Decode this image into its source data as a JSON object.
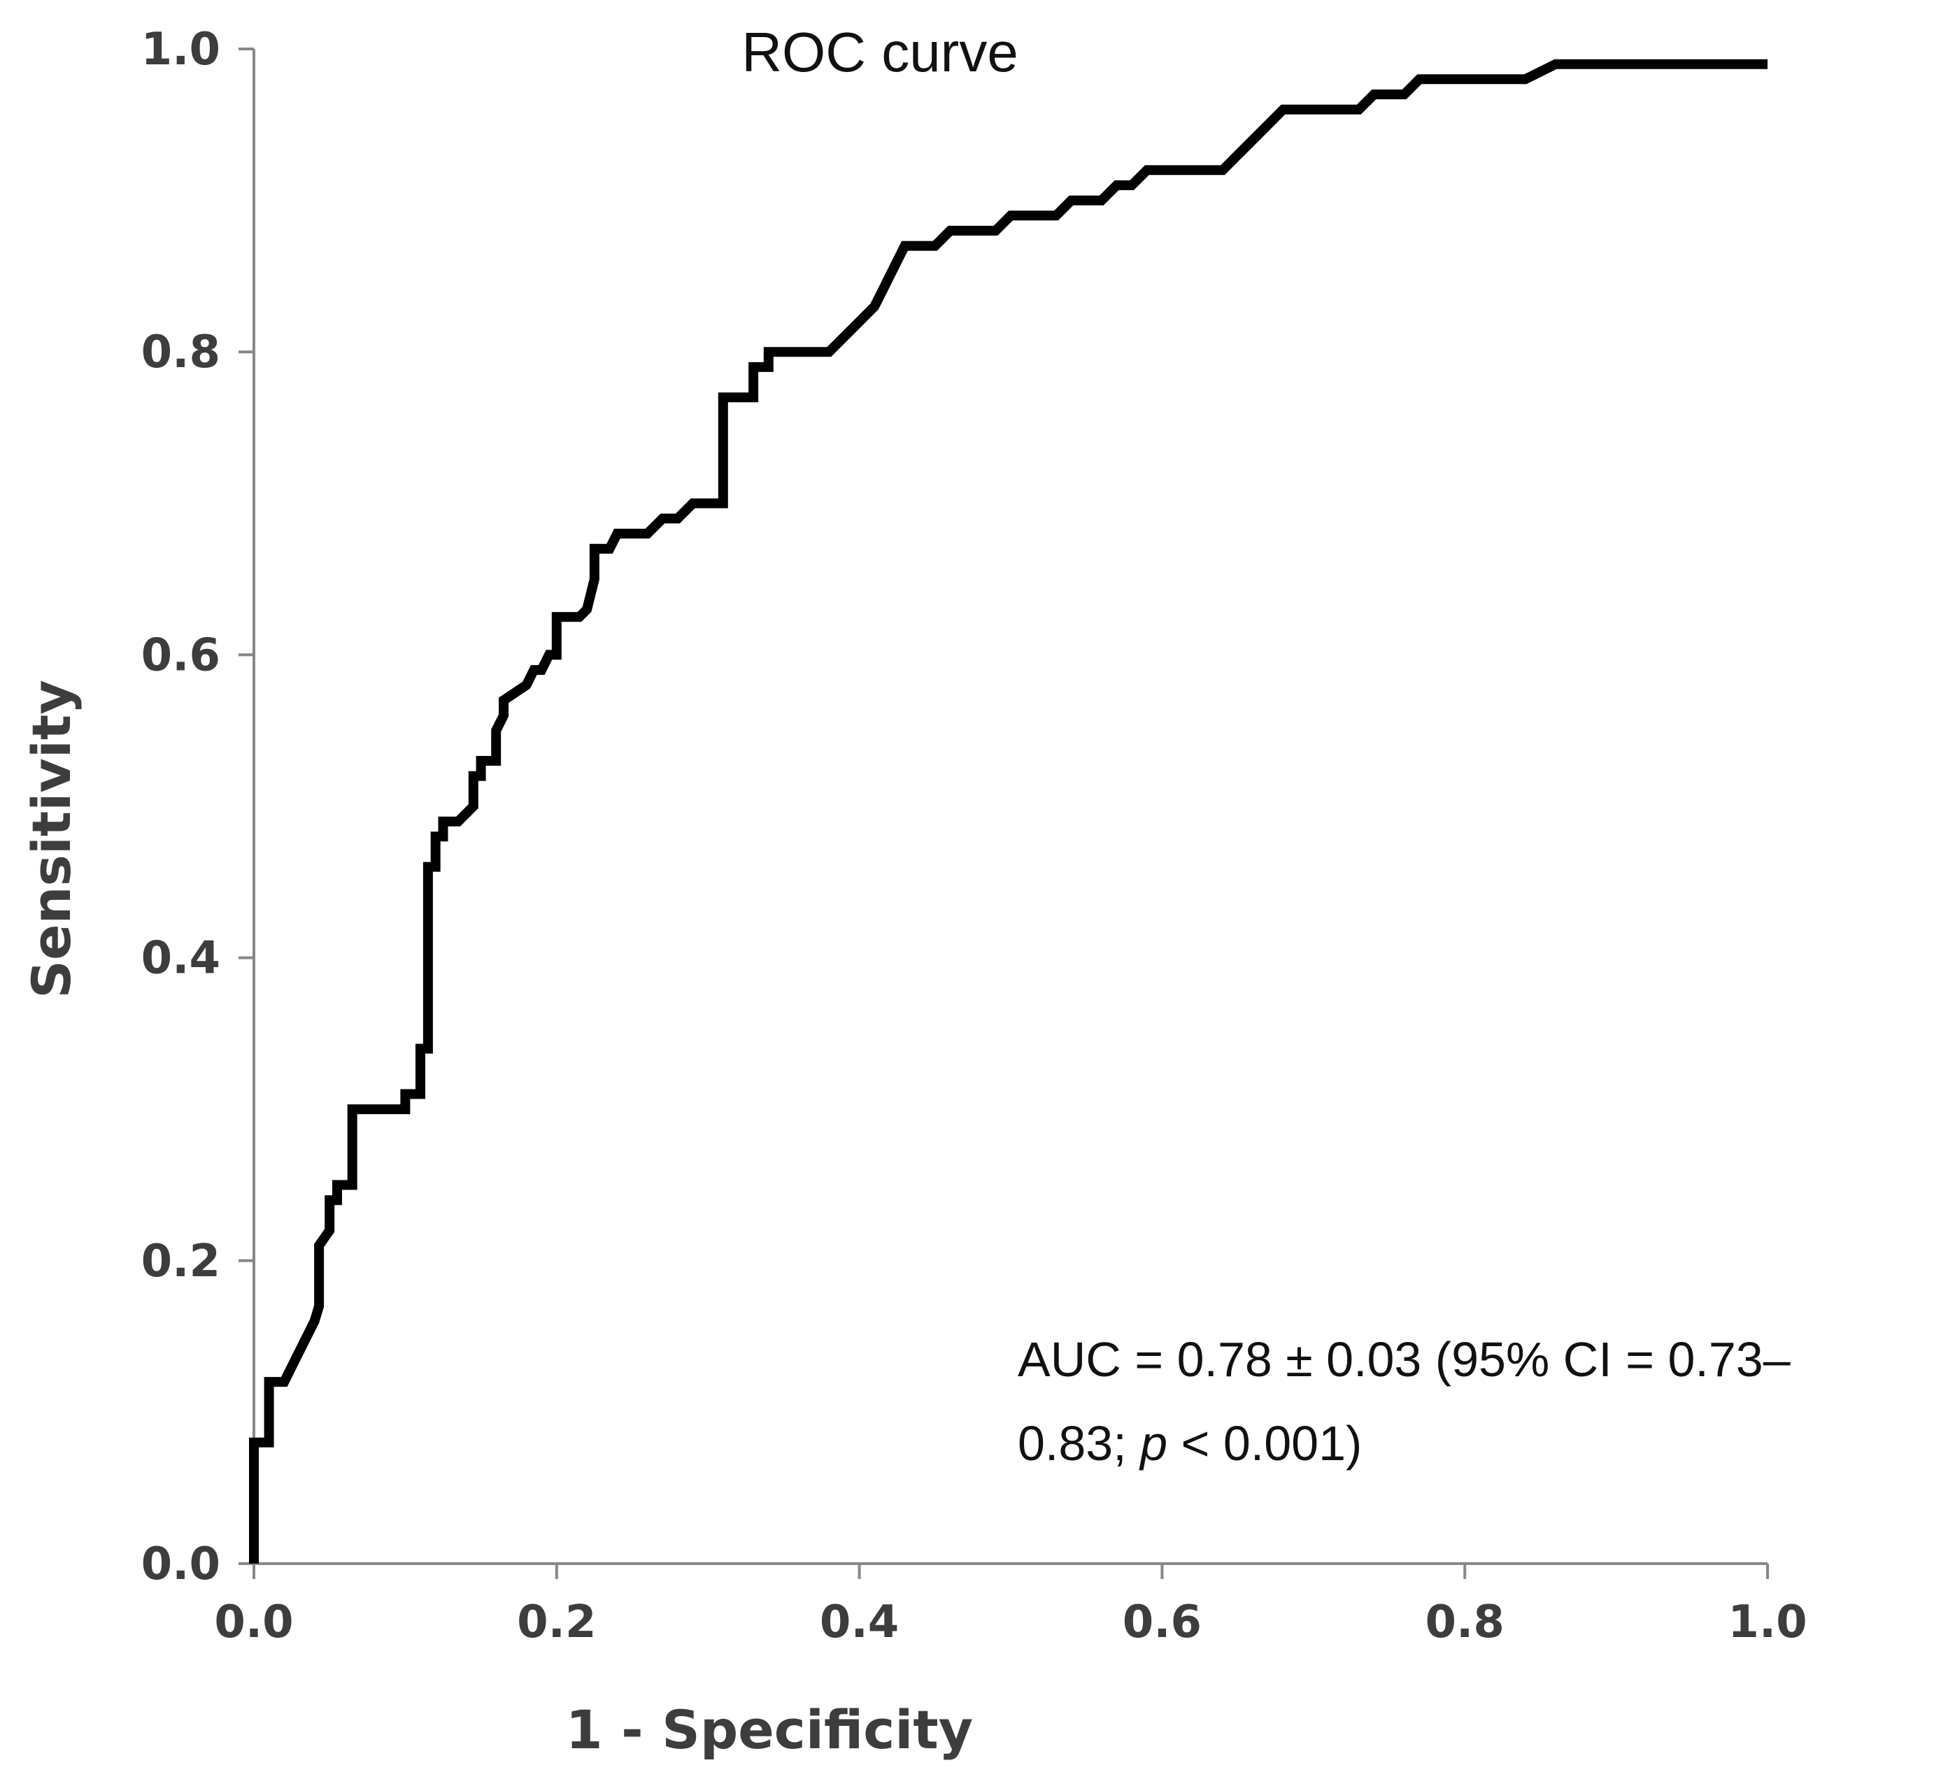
{
  "chart_data": {
    "type": "line",
    "title": "ROC curve",
    "xlabel": "1 - Specificity",
    "ylabel": "Sensitivity",
    "xlim": [
      0,
      1
    ],
    "ylim": [
      0,
      1
    ],
    "x_ticks": [
      "0.0",
      "0.2",
      "0.4",
      "0.6",
      "0.8",
      "1.0"
    ],
    "y_ticks": [
      "0.0",
      "0.2",
      "0.4",
      "0.6",
      "0.8",
      "1.0"
    ],
    "grid": false,
    "annotation": {
      "line1": "AUC = 0.78 ± 0.03 (95% CI = 0.73–",
      "line2_prefix": "0.83; ",
      "line2_italic": "p",
      "line2_suffix": " < 0.001)"
    },
    "series": [
      {
        "name": "ROC",
        "x": [
          0,
          0,
          0.01,
          0.01,
          0.02,
          0.025,
          0.03,
          0.035,
          0.04,
          0.043,
          0.043,
          0.05,
          0.05,
          0.055,
          0.055,
          0.065,
          0.065,
          0.075,
          0.075,
          0.1,
          0.1,
          0.11,
          0.11,
          0.115,
          0.115,
          0.12,
          0.12,
          0.125,
          0.125,
          0.135,
          0.145,
          0.145,
          0.15,
          0.15,
          0.16,
          0.16,
          0.165,
          0.165,
          0.18,
          0.185,
          0.19,
          0.195,
          0.2,
          0.2,
          0.21,
          0.215,
          0.22,
          0.225,
          0.225,
          0.235,
          0.24,
          0.25,
          0.26,
          0.27,
          0.28,
          0.29,
          0.3,
          0.31,
          0.31,
          0.33,
          0.33,
          0.34,
          0.34,
          0.36,
          0.38,
          0.39,
          0.4,
          0.41,
          0.415,
          0.42,
          0.425,
          0.43,
          0.44,
          0.45,
          0.46,
          0.48,
          0.49,
          0.5,
          0.51,
          0.52,
          0.53,
          0.54,
          0.55,
          0.56,
          0.57,
          0.58,
          0.59,
          0.6,
          0.61,
          0.62,
          0.63,
          0.64,
          0.65,
          0.66,
          0.67,
          0.68,
          0.69,
          0.7,
          0.72,
          0.73,
          0.74,
          0.76,
          0.77,
          0.78,
          0.82,
          0.84,
          0.86,
          0.88,
          0.9,
          0.95,
          1.0
        ],
        "y": [
          0,
          0.08,
          0.08,
          0.12,
          0.12,
          0.13,
          0.14,
          0.15,
          0.16,
          0.17,
          0.21,
          0.22,
          0.24,
          0.24,
          0.25,
          0.25,
          0.3,
          0.3,
          0.3,
          0.3,
          0.31,
          0.31,
          0.34,
          0.34,
          0.46,
          0.46,
          0.48,
          0.48,
          0.49,
          0.49,
          0.5,
          0.52,
          0.52,
          0.53,
          0.53,
          0.55,
          0.56,
          0.57,
          0.58,
          0.59,
          0.59,
          0.6,
          0.6,
          0.625,
          0.625,
          0.625,
          0.63,
          0.65,
          0.67,
          0.67,
          0.68,
          0.68,
          0.68,
          0.69,
          0.69,
          0.7,
          0.7,
          0.7,
          0.77,
          0.77,
          0.79,
          0.79,
          0.8,
          0.8,
          0.8,
          0.81,
          0.82,
          0.83,
          0.84,
          0.85,
          0.86,
          0.87,
          0.87,
          0.87,
          0.88,
          0.88,
          0.88,
          0.89,
          0.89,
          0.89,
          0.89,
          0.9,
          0.9,
          0.9,
          0.91,
          0.91,
          0.92,
          0.92,
          0.92,
          0.92,
          0.92,
          0.92,
          0.93,
          0.94,
          0.95,
          0.96,
          0.96,
          0.96,
          0.96,
          0.96,
          0.97,
          0.97,
          0.98,
          0.98,
          0.98,
          0.98,
          0.99,
          0.99,
          0.99,
          0.99,
          0.99
        ]
      }
    ],
    "colors": {
      "line": "#000000",
      "axis": "#888888",
      "text": "#3d3d3d"
    }
  }
}
